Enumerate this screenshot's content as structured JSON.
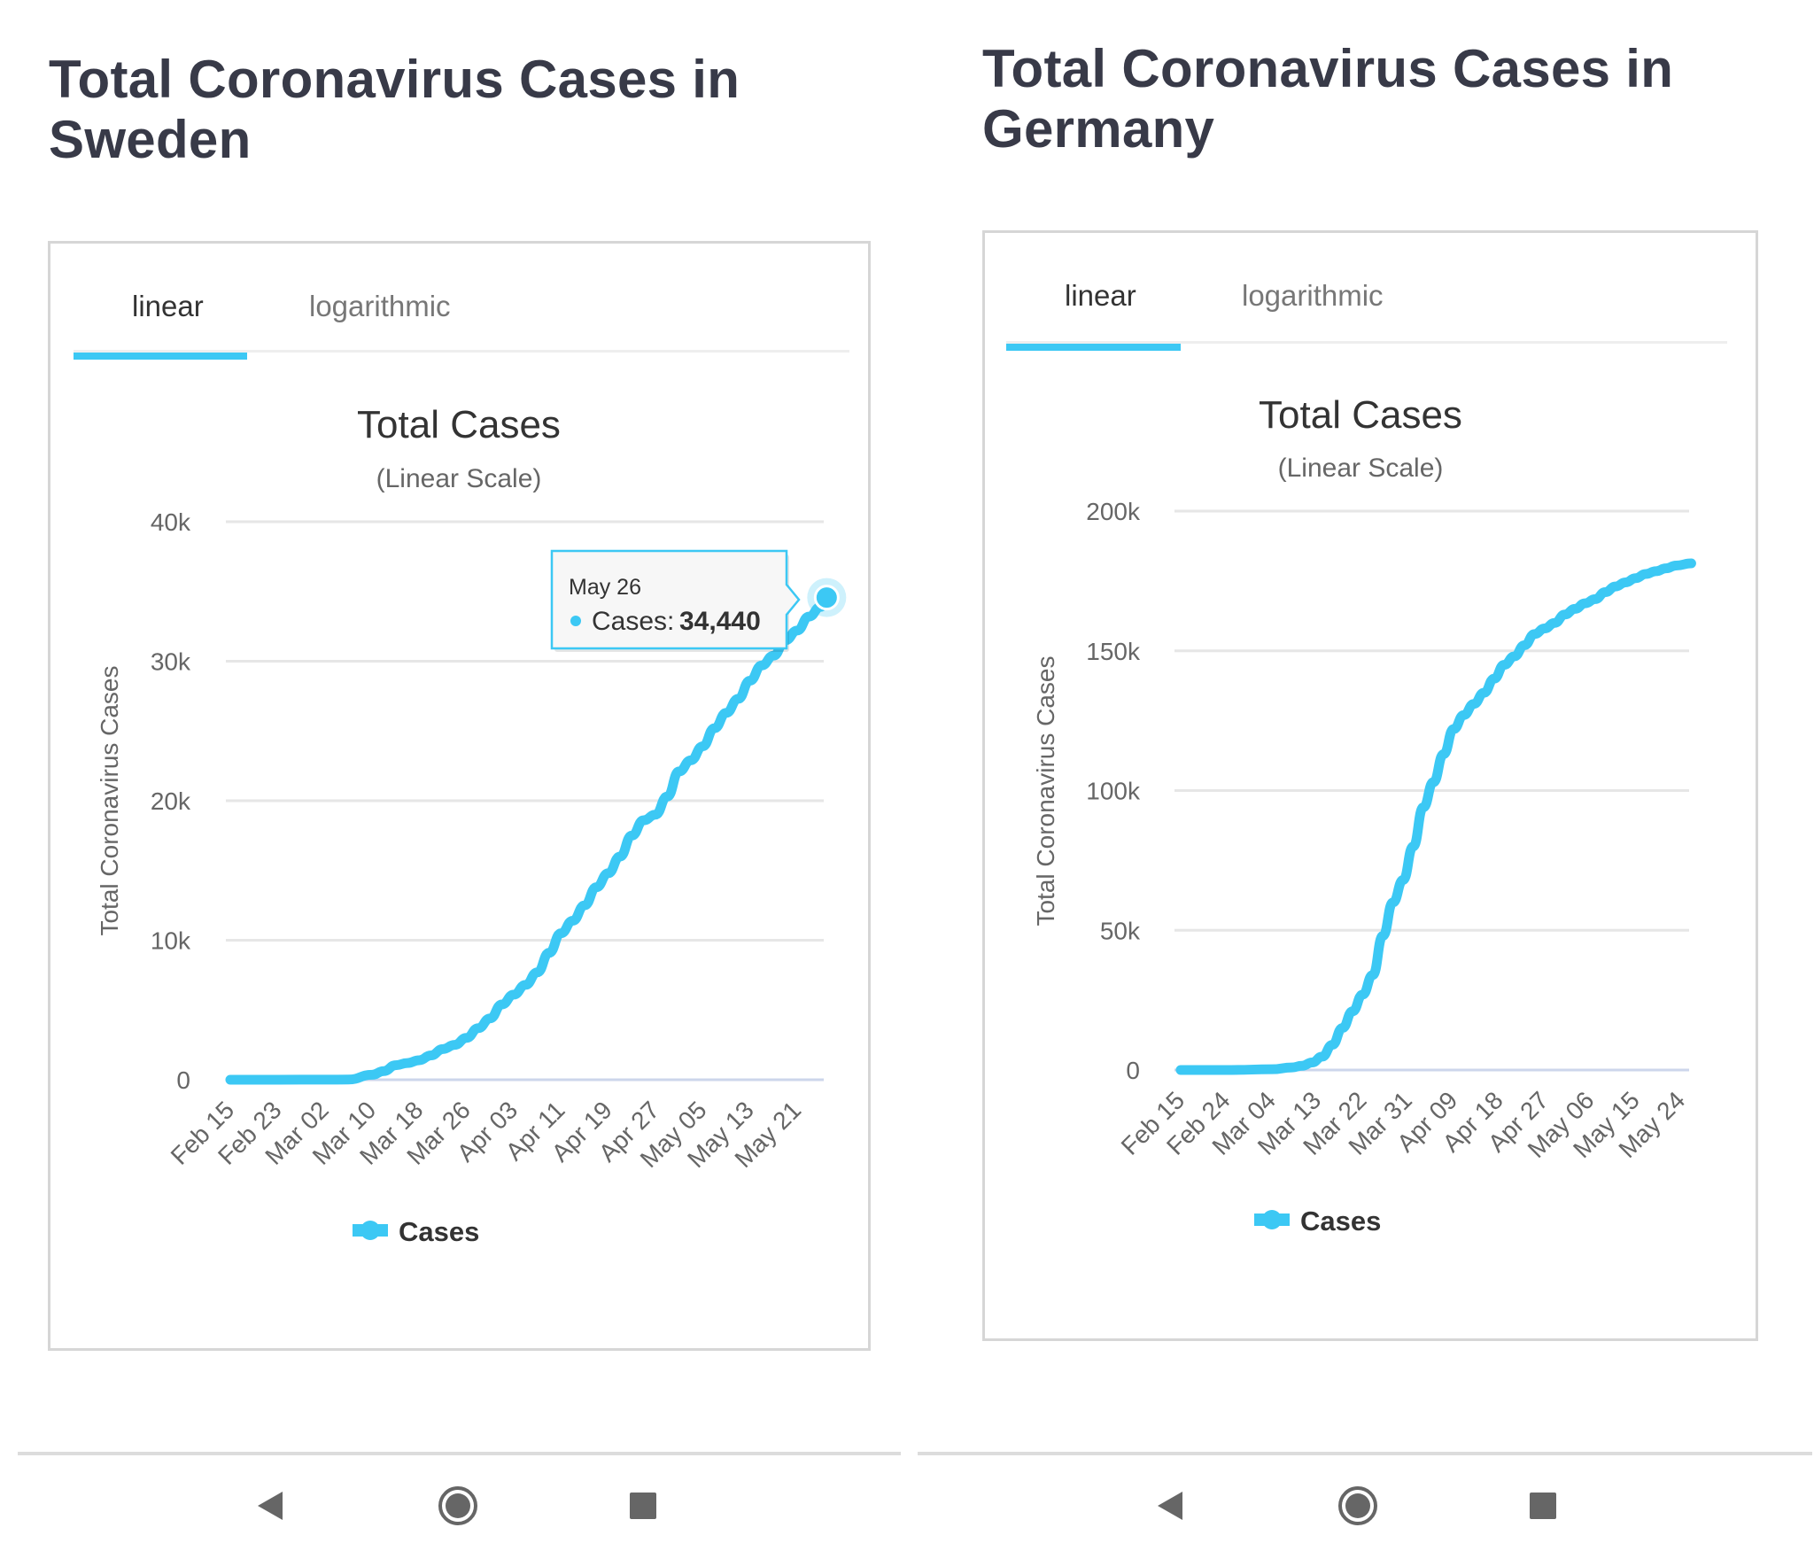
{
  "accent_color": "#3cc8f4",
  "panels": [
    {
      "page_title_line1": "Total Coronavirus Cases in",
      "page_title_line2": "Sweden",
      "tabs": [
        {
          "label": "linear",
          "active": true
        },
        {
          "label": "logarithmic",
          "active": false
        }
      ],
      "tooltip": {
        "date": "May 26",
        "series_label": "Cases:",
        "value": "34,440"
      },
      "nav": {
        "back": "back-icon",
        "home": "home-icon",
        "recents": "recents-icon"
      }
    },
    {
      "page_title_line1": "Total Coronavirus Cases in",
      "page_title_line2": "Germany",
      "tabs": [
        {
          "label": "linear",
          "active": true
        },
        {
          "label": "logarithmic",
          "active": false
        }
      ],
      "nav": {
        "back": "back-icon",
        "home": "home-icon",
        "recents": "recents-icon"
      }
    }
  ],
  "chart_data": [
    {
      "type": "line",
      "title": "Total Cases",
      "subtitle": "(Linear Scale)",
      "xlabel": "",
      "ylabel": "Total Coronavirus Cases",
      "ylim": [
        0,
        40000
      ],
      "yticks": [
        0,
        10000,
        20000,
        30000,
        40000
      ],
      "ytick_labels": [
        "0",
        "10k",
        "20k",
        "30k",
        "40k"
      ],
      "xrange_days": [
        0,
        101
      ],
      "start_date": "Feb 15",
      "end_date": "May 26",
      "xtick_days": [
        0,
        8,
        16,
        24,
        32,
        40,
        48,
        56,
        64,
        72,
        80,
        88,
        96
      ],
      "xtick_labels": [
        "Feb 15",
        "Feb 23",
        "Mar 02",
        "Mar 10",
        "Mar 18",
        "Mar 26",
        "Apr 03",
        "Apr 11",
        "Apr 19",
        "Apr 27",
        "May 05",
        "May 13",
        "May 21"
      ],
      "grid": true,
      "legend": "bottom-center",
      "series": [
        {
          "name": "Cases",
          "color": "#3cc8f4",
          "x_days": [
            0,
            8,
            16,
            20,
            24,
            26,
            28,
            30,
            32,
            34,
            36,
            38,
            40,
            42,
            44,
            46,
            48,
            50,
            52,
            54,
            56,
            58,
            60,
            62,
            64,
            66,
            68,
            70,
            72,
            74,
            76,
            78,
            80,
            82,
            84,
            86,
            88,
            90,
            92,
            94,
            96,
            98,
            100,
            101
          ],
          "values": [
            1,
            1,
            7,
            15,
            355,
            620,
            1040,
            1200,
            1400,
            1750,
            2200,
            2500,
            3000,
            3700,
            4400,
            5400,
            6100,
            6800,
            7700,
            9100,
            10500,
            11400,
            12500,
            13800,
            14800,
            16000,
            17500,
            18600,
            19000,
            20300,
            22100,
            22900,
            23900,
            25200,
            26300,
            27300,
            28600,
            29700,
            30400,
            31500,
            32200,
            33200,
            33900,
            34440
          ]
        }
      ],
      "highlighted_point": {
        "date": "May 26",
        "value": 34440
      }
    },
    {
      "type": "line",
      "title": "Total Cases",
      "subtitle": "(Linear Scale)",
      "xlabel": "",
      "ylabel": "Total Coronavirus Cases",
      "ylim": [
        0,
        200000
      ],
      "yticks": [
        0,
        50000,
        100000,
        150000,
        200000
      ],
      "ytick_labels": [
        "0",
        "50k",
        "100k",
        "150k",
        "200k"
      ],
      "xrange_days": [
        0,
        101
      ],
      "start_date": "Feb 15",
      "end_date": "May 26",
      "xtick_days": [
        0,
        9,
        18,
        27,
        36,
        45,
        54,
        63,
        72,
        81,
        90,
        99
      ],
      "xtick_labels": [
        "Feb 15",
        "Feb 24",
        "Mar 04",
        "Mar 13",
        "Mar 22",
        "Mar 31",
        "Apr 09",
        "Apr 18",
        "Apr 27",
        "May 06",
        "May 15",
        "May 24"
      ],
      "grid": true,
      "legend": "bottom-center",
      "series": [
        {
          "name": "Cases",
          "color": "#3cc8f4",
          "x_days": [
            0,
            10,
            18,
            22,
            24,
            26,
            28,
            30,
            32,
            34,
            36,
            38,
            40,
            42,
            44,
            46,
            48,
            50,
            52,
            54,
            56,
            58,
            60,
            62,
            64,
            66,
            68,
            70,
            72,
            74,
            76,
            78,
            80,
            82,
            84,
            86,
            88,
            90,
            92,
            94,
            96,
            98,
            101
          ],
          "values": [
            16,
            16,
            262,
            900,
            1500,
            2700,
            4800,
            9000,
            15000,
            21000,
            27000,
            34000,
            48000,
            60000,
            68000,
            80000,
            94000,
            103000,
            113000,
            122000,
            127000,
            131000,
            135000,
            140000,
            145000,
            148000,
            152000,
            156000,
            158000,
            160000,
            163000,
            165000,
            167000,
            168500,
            171000,
            173000,
            174500,
            176000,
            177500,
            178500,
            179500,
            180500,
            181300
          ]
        }
      ]
    }
  ]
}
